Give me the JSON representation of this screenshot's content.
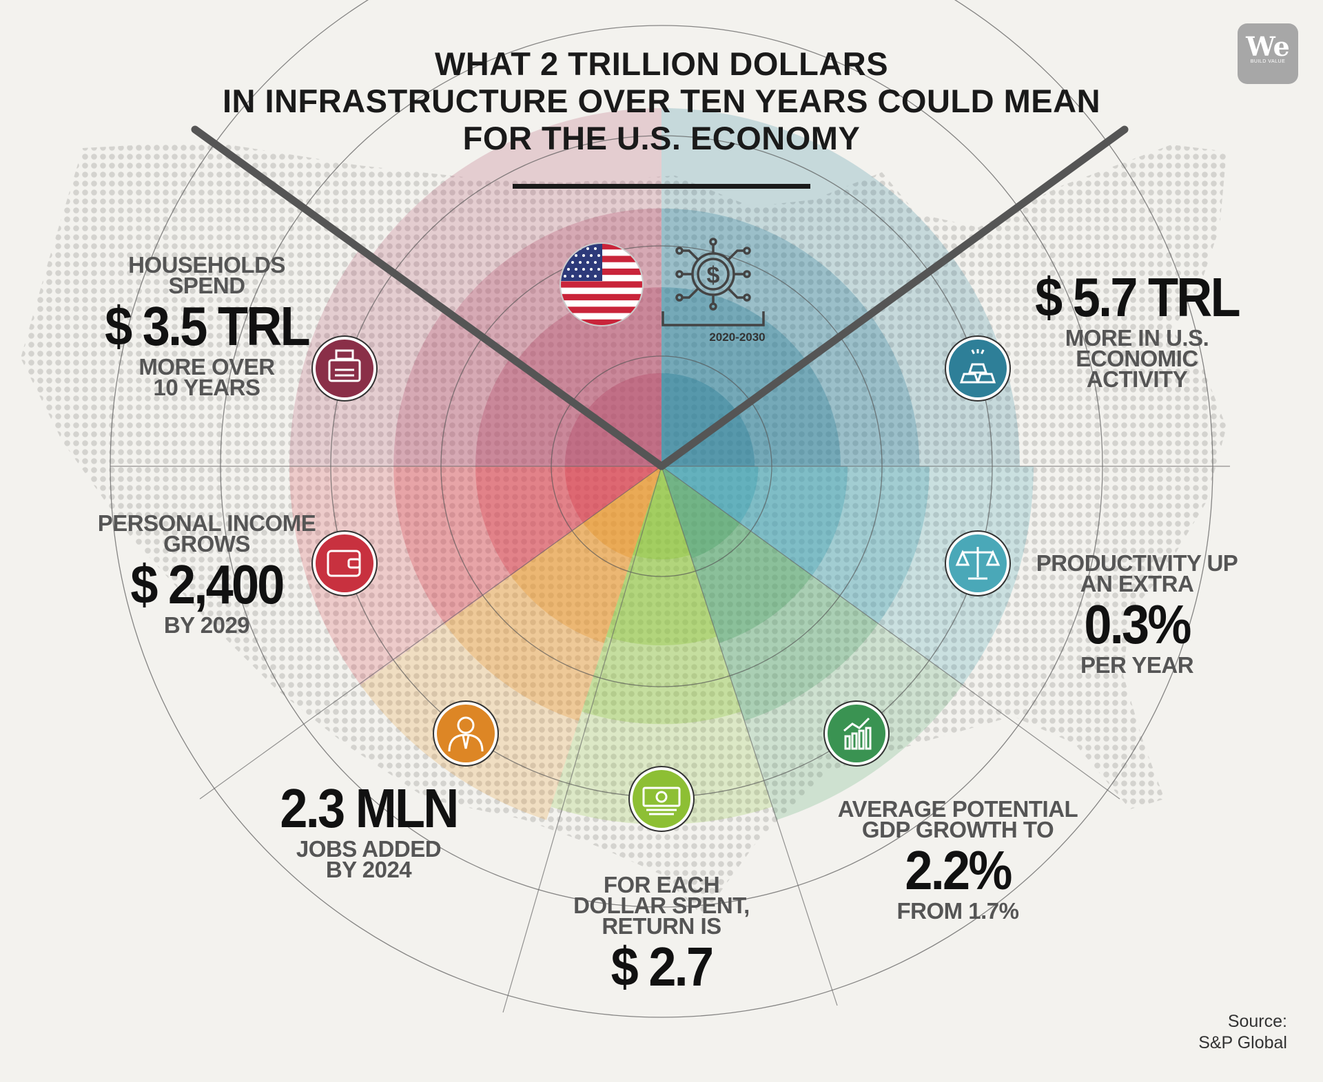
{
  "title": {
    "line1": "WHAT 2 TRILLION DOLLARS",
    "line2": "IN INFRASTRUCTURE OVER TEN YEARS COULD MEAN",
    "line3": "FOR THE U.S. ECONOMY"
  },
  "logo": {
    "mark": "We",
    "tagline": "BUILD VALUE"
  },
  "period": "2020-2030",
  "icons": {
    "flag": "us-flag-icon",
    "economy": "dollar-network-icon"
  },
  "colors": {
    "households": "#b34a6a",
    "income": "#d9404f",
    "jobs": "#e8952b",
    "return": "#8dc43a",
    "gdp": "#4ea36a",
    "productivity": "#3d9fb0",
    "activity": "#2b7f99"
  },
  "stats": {
    "households": {
      "top1": "HOUSEHOLDS",
      "top2": "SPEND",
      "value": "$ 3.5 TRL",
      "bottom1": "MORE OVER",
      "bottom2": "10 YEARS",
      "icon": "cash-register-icon"
    },
    "income": {
      "top1": "PERSONAL INCOME",
      "top2": "GROWS",
      "value": "$ 2,400",
      "bottom1": "BY 2029",
      "icon": "wallet-icon"
    },
    "jobs": {
      "value": "2.3 MLN",
      "bottom1": "JOBS ADDED",
      "bottom2": "BY 2024",
      "icon": "businessman-icon"
    },
    "return": {
      "top1": "FOR EACH",
      "top2": "DOLLAR SPENT,",
      "top3": "RETURN IS",
      "value": "$ 2.7",
      "icon": "banknote-icon"
    },
    "gdp": {
      "top1": "AVERAGE POTENTIAL",
      "top2": "GDP GROWTH TO",
      "value": "2.2%",
      "bottom1": "FROM 1.7%",
      "icon": "growth-chart-icon"
    },
    "productivity": {
      "top1": "PRODUCTIVITY UP",
      "top2": "AN EXTRA",
      "value": "0.3%",
      "bottom1": "PER YEAR",
      "icon": "scales-icon"
    },
    "activity": {
      "value": "$ 5.7 TRL",
      "bottom1": "MORE IN U.S.",
      "bottom2": "ECONOMIC",
      "bottom3": "ACTIVITY",
      "icon": "gold-bars-icon"
    }
  },
  "source": {
    "line1": "Source:",
    "line2": "S&P Global"
  }
}
